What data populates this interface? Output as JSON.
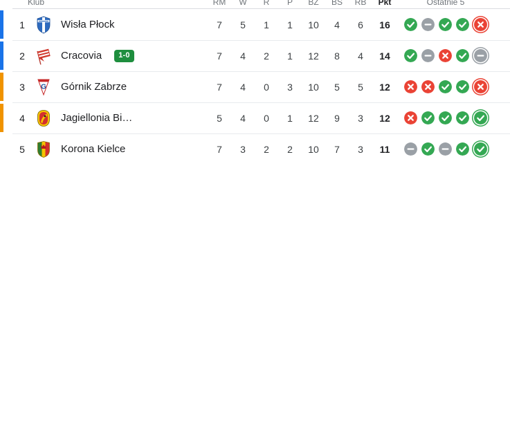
{
  "widget": {
    "kind": "league-standings-table"
  },
  "colors": {
    "accent_blue": "#1a73e8",
    "accent_orange": "#f09300",
    "win_green": "#34a853",
    "draw_gray": "#9aa0a6",
    "loss_red": "#ea4335",
    "badge_green": "#1e8e3e"
  },
  "form_icon_glyphs": {
    "W": "check-circle",
    "D": "dash-circle",
    "L": "x-circle"
  },
  "table": {
    "columns": {
      "klub": "Klub",
      "rm": "RM",
      "w": "W",
      "r": "R",
      "p": "P",
      "bz": "BZ",
      "bs": "BS",
      "rb": "RB",
      "pkt": "Pkt",
      "ostatnie": "Ostatnie 5"
    },
    "rows": [
      {
        "position": "1",
        "team": "Wisła Płock",
        "crest": "wisla-plock",
        "accent": "blue",
        "badge": null,
        "stats": [
          "7",
          "5",
          "1",
          "1",
          "10",
          "4",
          "6"
        ],
        "points": "16",
        "form": [
          "W",
          "D",
          "W",
          "W",
          "L"
        ]
      },
      {
        "position": "2",
        "team": "Cracovia",
        "crest": "cracovia",
        "accent": "blue",
        "badge": "1-0",
        "stats": [
          "7",
          "4",
          "2",
          "1",
          "12",
          "8",
          "4"
        ],
        "points": "14",
        "form": [
          "W",
          "D",
          "L",
          "W",
          "D"
        ]
      },
      {
        "position": "3",
        "team": "Górnik Zabrze",
        "crest": "gornik-zabrze",
        "accent": "orange",
        "badge": null,
        "stats": [
          "7",
          "4",
          "0",
          "3",
          "10",
          "5",
          "5"
        ],
        "points": "12",
        "form": [
          "L",
          "L",
          "W",
          "W",
          "L"
        ]
      },
      {
        "position": "4",
        "team": "Jagiellonia Bi…",
        "crest": "jagiellonia",
        "accent": "orange",
        "badge": null,
        "stats": [
          "5",
          "4",
          "0",
          "1",
          "12",
          "9",
          "3"
        ],
        "points": "12",
        "form": [
          "L",
          "W",
          "W",
          "W",
          "W"
        ]
      },
      {
        "position": "5",
        "team": "Korona Kielce",
        "crest": "korona-kielce",
        "accent": null,
        "badge": null,
        "stats": [
          "7",
          "3",
          "2",
          "2",
          "10",
          "7",
          "3"
        ],
        "points": "11",
        "form": [
          "D",
          "W",
          "D",
          "W",
          "W"
        ]
      }
    ]
  }
}
